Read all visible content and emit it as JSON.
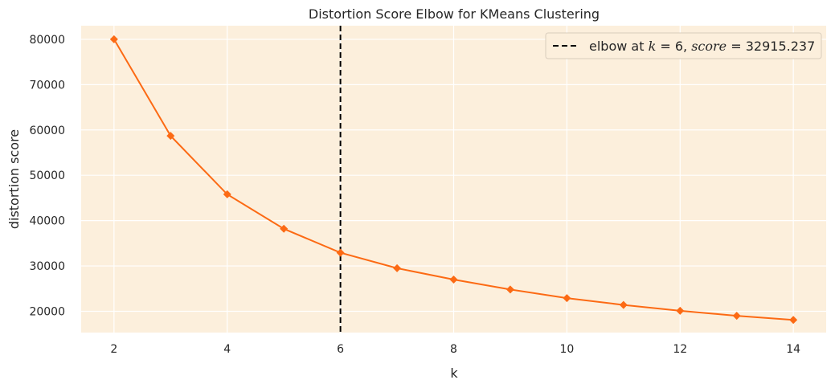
{
  "chart_data": {
    "type": "line",
    "title": "Distortion Score Elbow for KMeans Clustering",
    "xlabel": "k",
    "ylabel": "distortion score",
    "x": [
      2,
      3,
      4,
      5,
      6,
      7,
      8,
      9,
      10,
      11,
      12,
      13,
      14
    ],
    "series": [
      {
        "values": [
          80000,
          58700,
          45800,
          38200,
          32915.237,
          29500,
          27000,
          24800,
          22900,
          21400,
          20100,
          19000,
          18100
        ]
      }
    ],
    "xlim": [
      1.42,
      14.58
    ],
    "ylim": [
      15300,
      83000
    ],
    "x_ticks": [
      2,
      4,
      6,
      8,
      10,
      12,
      14
    ],
    "y_ticks": [
      20000,
      30000,
      40000,
      50000,
      60000,
      70000,
      80000
    ],
    "grid": true,
    "legend_position": "top-right",
    "elbow": {
      "k": 6,
      "score": 32915.237
    },
    "legend": {
      "prefix": "elbow at ",
      "k_var": "k",
      "eq1": " = 6, ",
      "score_var": "score",
      "eq2": " = 32915.237"
    },
    "colors": {
      "background": "#fcefdc",
      "grid": "#ffffff",
      "line": "#fc6a14",
      "elbow": "#000000"
    }
  }
}
